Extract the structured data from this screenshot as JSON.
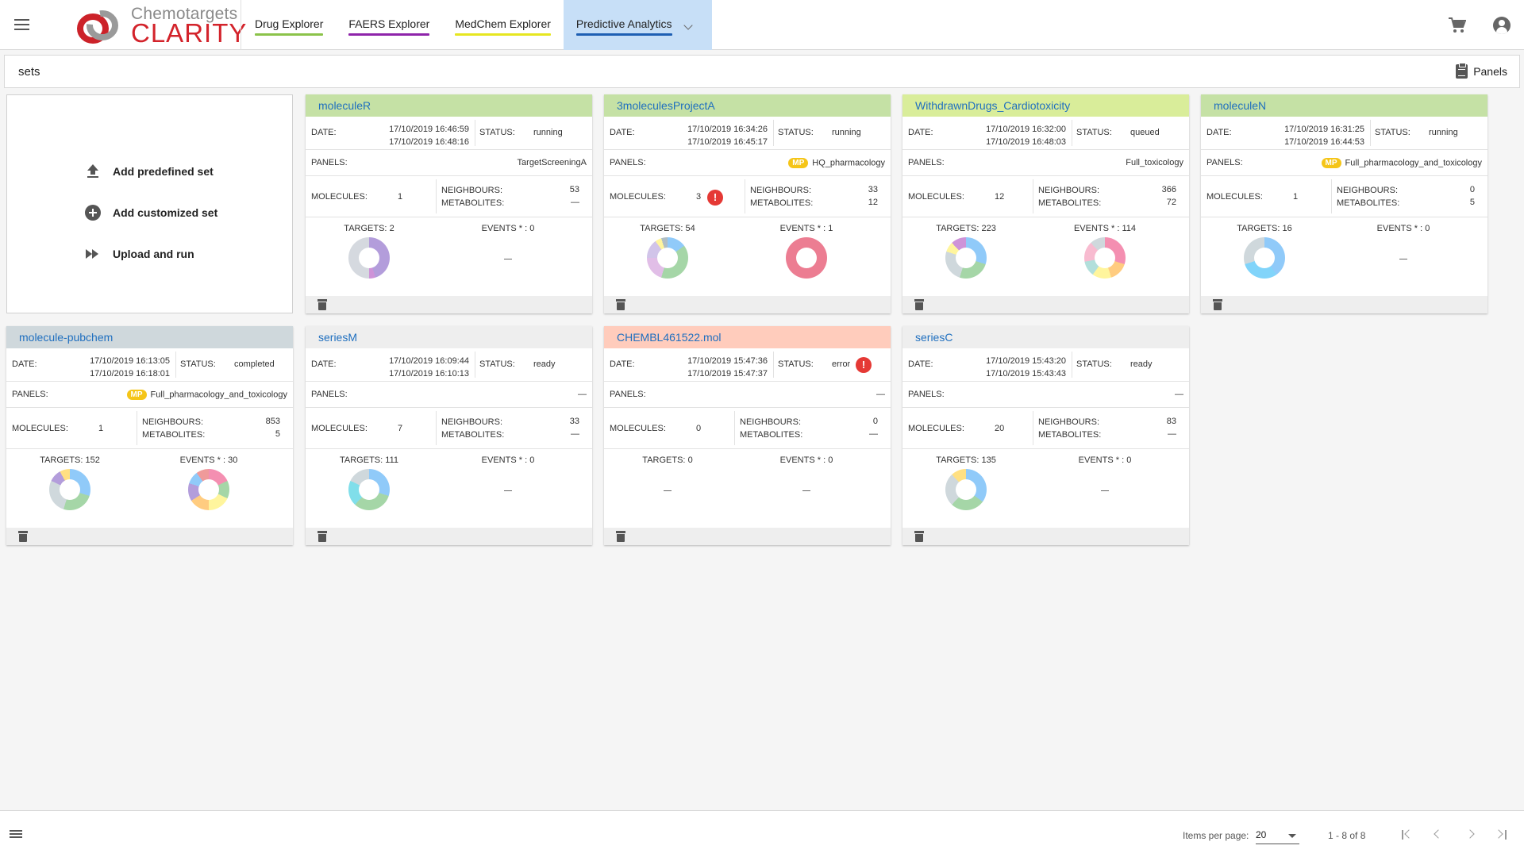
{
  "header": {
    "logo_line1": "Chemotargets",
    "logo_line2": "CLARITY",
    "tabs": [
      {
        "label": "Drug Explorer",
        "color": "#8bc34a"
      },
      {
        "label": "FAERS Explorer",
        "color": "#8e24aa"
      },
      {
        "label": "MedChem Explorer",
        "color": "#e6e620"
      },
      {
        "label": "Predictive Analytics",
        "color": "#1e5fb3"
      }
    ],
    "icons": [
      "menu-icon",
      "chevron-down-icon",
      "cart-icon",
      "account-icon"
    ]
  },
  "setsbar": {
    "title": "sets",
    "panels_label": "Panels"
  },
  "add_box": {
    "items": [
      {
        "label": "Add predefined set",
        "icon": "upload-icon"
      },
      {
        "label": "Add customized set",
        "icon": "add-circle-icon"
      },
      {
        "label": "Upload and run",
        "icon": "fast-forward-icon"
      }
    ]
  },
  "labels": {
    "date": "DATE:",
    "status": "STATUS:",
    "panels": "PANELS:",
    "molecules": "MOLECULES:",
    "neighbours": "NEIGHBOURS:",
    "metabolites": "METABOLITES:",
    "targets": "TARGETS:",
    "events": "EVENTS * :"
  },
  "cards": [
    {
      "title": "moleculeR",
      "header_color": "#c5e1a5",
      "date1": "17/10/2019 16:46:59",
      "date2": "17/10/2019 16:48:16",
      "status": "running",
      "status_error": false,
      "panels": "TargetScreeningA",
      "panels_mp": false,
      "molecules": "1",
      "mol_error": false,
      "neighbours": "53",
      "metabolites": "—",
      "targets": "2",
      "events": "0",
      "targets_pie": true,
      "events_pie": false
    },
    {
      "title": "3moleculesProjectA",
      "header_color": "#c5e1a5",
      "date1": "17/10/2019 16:34:26",
      "date2": "17/10/2019 16:45:17",
      "status": "running",
      "status_error": false,
      "panels": "HQ_pharmacology",
      "panels_mp": true,
      "mp_label": "MP",
      "molecules": "3",
      "mol_error": true,
      "neighbours": "33",
      "metabolites": "12",
      "targets": "54",
      "events": "1",
      "targets_pie": true,
      "events_pie": true
    },
    {
      "title": "WithdrawnDrugs_Cardiotoxicity",
      "header_color": "#d9ed9a",
      "date1": "17/10/2019 16:32:00",
      "date2": "17/10/2019 16:48:03",
      "status": "queued",
      "status_error": false,
      "panels": "Full_toxicology",
      "panels_mp": false,
      "molecules": "12",
      "mol_error": false,
      "neighbours": "366",
      "metabolites": "72",
      "targets": "223",
      "events": "114",
      "targets_pie": true,
      "events_pie": true
    },
    {
      "title": "moleculeN",
      "header_color": "#c5e1a5",
      "date1": "17/10/2019 16:31:25",
      "date2": "17/10/2019 16:44:53",
      "status": "running",
      "status_error": false,
      "panels": "Full_pharmacology_and_toxicology",
      "panels_mp": true,
      "mp_label": "MP",
      "molecules": "1",
      "mol_error": false,
      "neighbours": "0",
      "metabolites": "5",
      "targets": "16",
      "events": "0",
      "targets_pie": true,
      "events_pie": false
    },
    {
      "title": "molecule-pubchem",
      "header_color": "#cfd8dc",
      "date1": "17/10/2019 16:13:05",
      "date2": "17/10/2019 16:18:01",
      "status": "completed",
      "status_error": false,
      "panels": "Full_pharmacology_and_toxicology",
      "panels_mp": true,
      "mp_label": "MP",
      "molecules": "1",
      "mol_error": false,
      "neighbours": "853",
      "metabolites": "5",
      "targets": "152",
      "events": "30",
      "targets_pie": true,
      "events_pie": true
    },
    {
      "title": "seriesM",
      "header_color": "#eeeeee",
      "date1": "17/10/2019 16:09:44",
      "date2": "17/10/2019 16:10:13",
      "status": "ready",
      "status_error": false,
      "panels": "—",
      "panels_mp": false,
      "molecules": "7",
      "mol_error": false,
      "neighbours": "33",
      "metabolites": "—",
      "targets": "111",
      "events": "0",
      "targets_pie": true,
      "events_pie": false
    },
    {
      "title": "CHEMBL461522.mol",
      "header_color": "#ffccbc",
      "date1": "17/10/2019 15:47:36",
      "date2": "17/10/2019 15:47:37",
      "status": "error",
      "status_error": true,
      "panels": "—",
      "panels_mp": false,
      "molecules": "0",
      "mol_error": false,
      "neighbours": "0",
      "metabolites": "—",
      "targets": "0",
      "events": "0",
      "targets_pie": false,
      "events_pie": false
    },
    {
      "title": "seriesC",
      "header_color": "#eeeeee",
      "date1": "17/10/2019 15:43:20",
      "date2": "17/10/2019 15:43:43",
      "status": "ready",
      "status_error": false,
      "panels": "—",
      "panels_mp": false,
      "molecules": "20",
      "mol_error": false,
      "neighbours": "83",
      "metabolites": "—",
      "targets": "135",
      "events": "0",
      "targets_pie": true,
      "events_pie": false
    }
  ],
  "footer": {
    "items_per_page_label": "Items per page:",
    "items_per_page": "20",
    "range": "1 - 8 of 8"
  }
}
